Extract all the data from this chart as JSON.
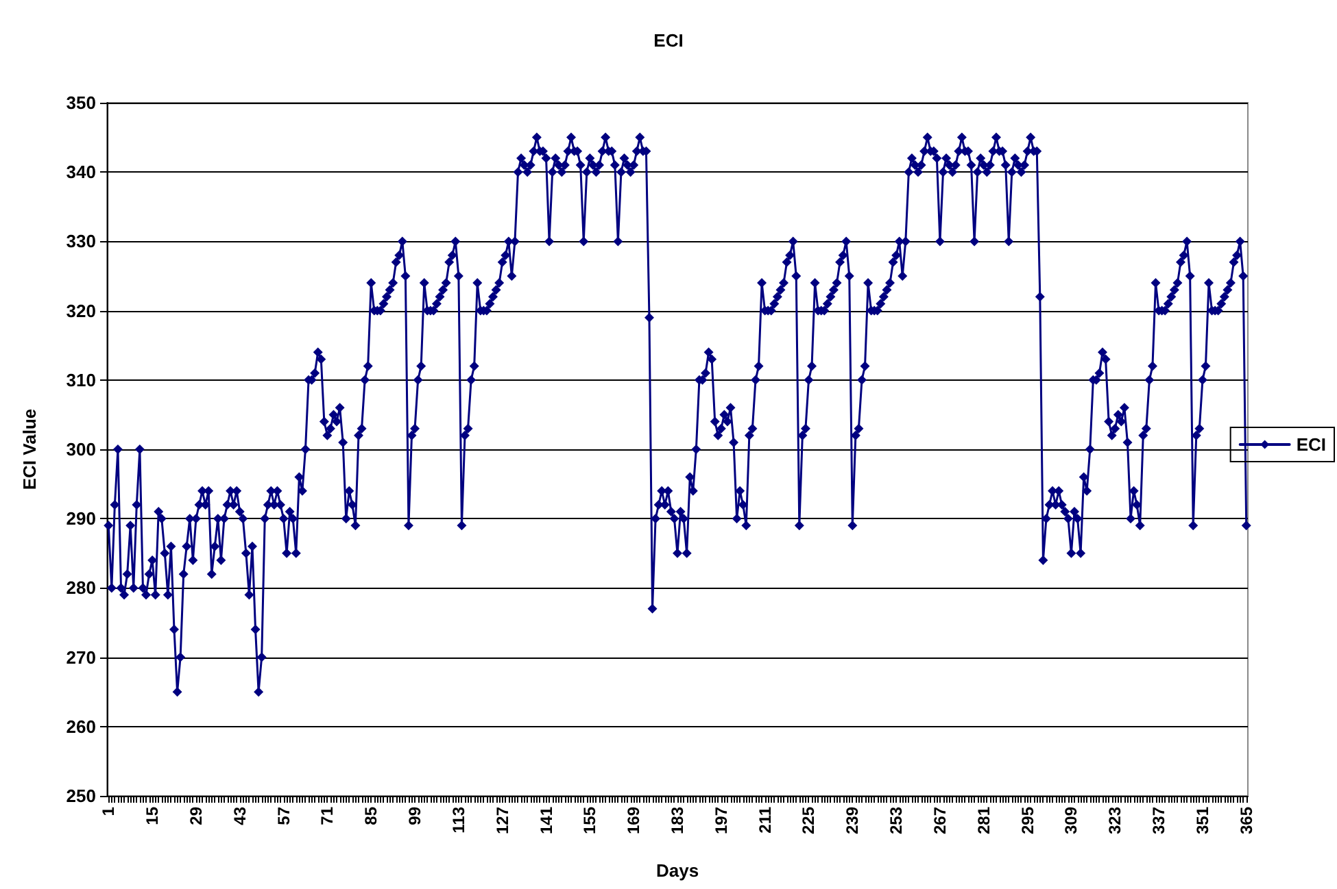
{
  "chart_data": {
    "type": "line",
    "title": "ECI",
    "xlabel": "Days",
    "ylabel": "ECI Value",
    "categories": [
      "1",
      null,
      null,
      null,
      null,
      null,
      null,
      null,
      null,
      null,
      null,
      null,
      null,
      null,
      "15",
      null,
      null,
      null,
      null,
      null,
      null,
      null,
      null,
      null,
      null,
      null,
      null,
      null,
      "29",
      null,
      null,
      null,
      null,
      null,
      null,
      null,
      null,
      null,
      null,
      null,
      null,
      null,
      "43",
      null,
      null,
      null,
      null,
      null,
      null,
      null,
      null,
      null,
      null,
      null,
      null,
      null,
      "57",
      null,
      null,
      null,
      null,
      null,
      null,
      null,
      null,
      null,
      null,
      null,
      null,
      null,
      "71",
      null,
      null,
      null,
      null,
      null,
      null,
      null,
      null,
      null,
      null,
      null,
      null,
      null,
      "85",
      null,
      null,
      null,
      null,
      null,
      null,
      null,
      null,
      null,
      null,
      null,
      null,
      null,
      "99",
      null,
      null,
      null,
      null,
      null,
      null,
      null,
      null,
      null,
      null,
      null,
      null,
      null,
      "113",
      null,
      null,
      null,
      null,
      null,
      null,
      null,
      null,
      null,
      null,
      null,
      null,
      null,
      "127",
      null,
      null,
      null,
      null,
      null,
      null,
      null,
      null,
      null,
      null,
      null,
      null,
      null,
      "141",
      null,
      null,
      null,
      null,
      null,
      null,
      null,
      null,
      null,
      null,
      null,
      null,
      null,
      "155",
      null,
      null,
      null,
      null,
      null,
      null,
      null,
      null,
      null,
      null,
      null,
      null,
      null,
      "169",
      null,
      null,
      null,
      null,
      null,
      null,
      null,
      null,
      null,
      null,
      null,
      null,
      null,
      "183",
      null,
      null,
      null,
      null,
      null,
      null,
      null,
      null,
      null,
      null,
      null,
      null,
      null,
      "197",
      null,
      null,
      null,
      null,
      null,
      null,
      null,
      null,
      null,
      null,
      null,
      null,
      null,
      "211",
      null,
      null,
      null,
      null,
      null,
      null,
      null,
      null,
      null,
      null,
      null,
      null,
      null,
      "225",
      null,
      null,
      null,
      null,
      null,
      null,
      null,
      null,
      null,
      null,
      null,
      null,
      null,
      "239",
      null,
      null,
      null,
      null,
      null,
      null,
      null,
      null,
      null,
      null,
      null,
      null,
      null,
      "253",
      null,
      null,
      null,
      null,
      null,
      null,
      null,
      null,
      null,
      null,
      null,
      null,
      null,
      "267",
      null,
      null,
      null,
      null,
      null,
      null,
      null,
      null,
      null,
      null,
      null,
      null,
      null,
      "281",
      null,
      null,
      null,
      null,
      null,
      null,
      null,
      null,
      null,
      null,
      null,
      null,
      null,
      "295",
      null,
      null,
      null,
      null,
      null,
      null,
      null,
      null,
      null,
      null,
      null,
      null,
      null,
      "309",
      null,
      null,
      null,
      null,
      null,
      null,
      null,
      null,
      null,
      null,
      null,
      null,
      null,
      "323",
      null,
      null,
      null,
      null,
      null,
      null,
      null,
      null,
      null,
      null,
      null,
      null,
      null,
      "337",
      null,
      null,
      null,
      null,
      null,
      null,
      null,
      null,
      null,
      null,
      null,
      null,
      null,
      "351",
      null,
      null,
      null,
      null,
      null,
      null,
      null,
      null,
      null,
      null,
      null,
      null,
      null,
      "365"
    ],
    "series": [
      {
        "name": "ECI",
        "color": "#000080",
        "values": [
          289,
          280,
          292,
          300,
          280,
          279,
          282,
          289,
          280,
          292,
          300,
          280,
          279,
          282,
          284,
          279,
          291,
          290,
          285,
          279,
          286,
          274,
          265,
          270,
          282,
          286,
          290,
          284,
          290,
          292,
          294,
          292,
          294,
          282,
          286,
          290,
          284,
          290,
          292,
          294,
          292,
          294,
          291,
          290,
          285,
          279,
          286,
          274,
          265,
          270,
          290,
          292,
          294,
          292,
          294,
          292,
          290,
          285,
          291,
          290,
          285,
          296,
          294,
          300,
          310,
          310,
          311,
          314,
          313,
          304,
          302,
          303,
          305,
          304,
          306,
          301,
          290,
          294,
          292,
          289,
          302,
          303,
          310,
          312,
          324,
          320,
          320,
          320,
          321,
          322,
          323,
          324,
          327,
          328,
          330,
          325,
          289,
          302,
          303,
          310,
          312,
          324,
          320,
          320,
          320,
          321,
          322,
          323,
          324,
          327,
          328,
          330,
          325,
          289,
          302,
          303,
          310,
          312,
          324,
          320,
          320,
          320,
          321,
          322,
          323,
          324,
          327,
          328,
          330,
          325,
          330,
          340,
          342,
          341,
          340,
          341,
          343,
          345,
          343,
          343,
          342,
          330,
          340,
          342,
          341,
          340,
          341,
          343,
          345,
          343,
          343,
          341,
          330,
          340,
          342,
          341,
          340,
          341,
          343,
          345,
          343,
          343,
          341,
          330,
          340,
          342,
          341,
          340,
          341,
          343,
          345,
          343,
          343,
          319,
          277,
          290,
          292,
          294,
          292,
          294,
          291,
          290,
          285,
          291,
          290,
          285,
          296,
          294,
          300,
          310,
          310,
          311,
          314,
          313,
          304,
          302,
          303,
          305,
          304,
          306,
          301,
          290,
          294,
          292,
          289,
          302,
          303,
          310,
          312,
          324,
          320,
          320,
          320,
          321,
          322,
          323,
          324,
          327,
          328,
          330,
          325,
          289,
          302,
          303,
          310,
          312,
          324,
          320,
          320,
          320,
          321,
          322,
          323,
          324,
          327,
          328,
          330,
          325,
          289,
          302,
          303,
          310,
          312,
          324,
          320,
          320,
          320,
          321,
          322,
          323,
          324,
          327,
          328,
          330,
          325,
          330,
          340,
          342,
          341,
          340,
          341,
          343,
          345,
          343,
          343,
          342,
          330,
          340,
          342,
          341,
          340,
          341,
          343,
          345,
          343,
          343,
          341,
          330,
          340,
          342,
          341,
          340,
          341,
          343,
          345,
          343,
          343,
          341,
          330,
          340,
          342,
          341,
          340,
          341,
          343,
          345,
          343,
          343,
          322,
          284,
          290,
          292,
          294,
          292,
          294,
          292,
          291,
          290,
          285,
          291,
          290,
          285,
          296,
          294,
          300,
          310,
          310,
          311,
          314,
          313,
          304,
          302,
          303,
          305,
          304,
          306,
          301,
          290,
          294,
          292,
          289,
          302,
          303,
          310,
          312,
          324,
          320,
          320,
          320,
          321,
          322,
          323,
          324,
          327,
          328,
          330,
          325,
          289,
          302,
          303,
          310,
          312,
          324,
          320,
          320,
          320,
          321,
          322,
          323,
          324,
          327,
          328,
          330,
          325,
          289
        ]
      }
    ],
    "ylim": [
      250,
      350
    ],
    "yticks": [
      250,
      260,
      270,
      280,
      290,
      300,
      310,
      320,
      330,
      340,
      350
    ],
    "grid": "y",
    "legend": "right",
    "marker": "diamond",
    "line_style": "solid"
  }
}
